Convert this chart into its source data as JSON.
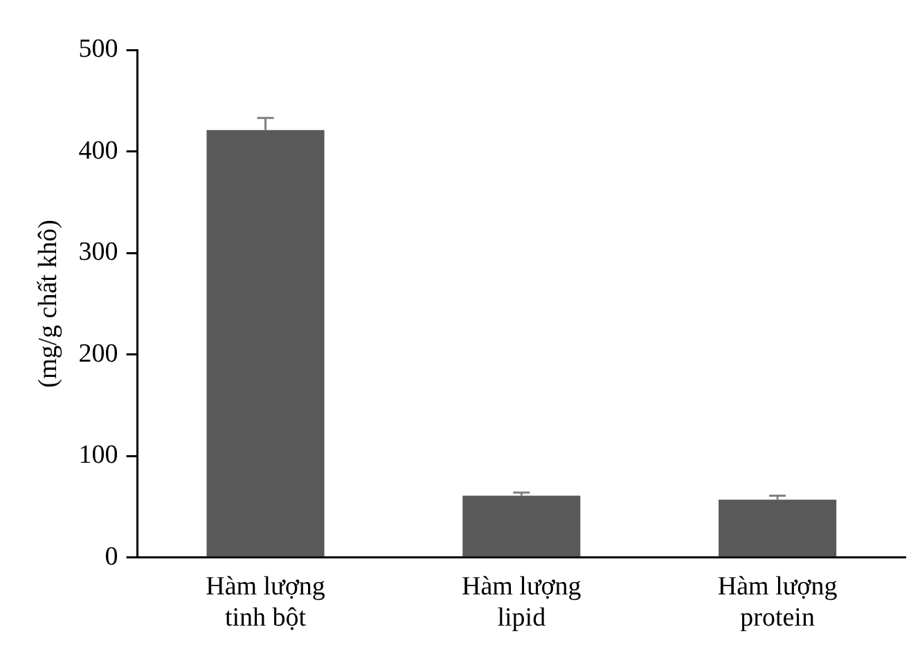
{
  "chart_data": {
    "type": "bar",
    "ylabel": "(mg/g chất khô)",
    "categories": [
      "Hàm lượng\ntinh bột",
      "Hàm lượng\nlipid",
      "Hàm lượng\nprotein"
    ],
    "values": [
      421,
      61,
      57
    ],
    "errors": [
      [
        421,
        433
      ],
      [
        61,
        64
      ],
      [
        57,
        61
      ]
    ],
    "color": "#595959",
    "ylim": [
      0,
      500
    ],
    "yticks": [
      0,
      100,
      200,
      300,
      400,
      500
    ],
    "grid": false,
    "legend": false
  }
}
